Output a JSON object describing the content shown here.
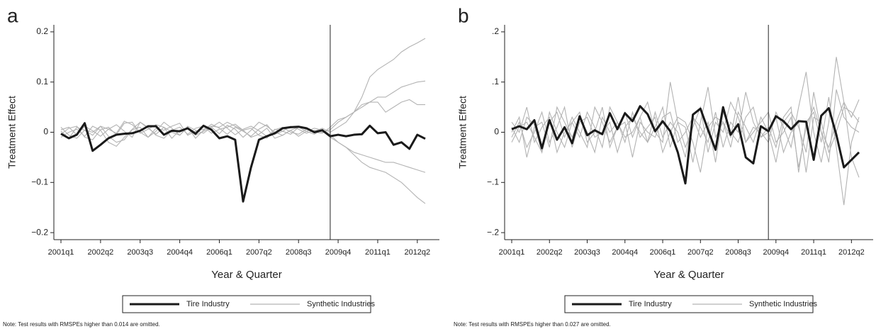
{
  "chart_data": [
    {
      "type": "line",
      "panel": "a",
      "y_label": "Treatment Effect",
      "x_label": "Year & Quarter",
      "note": "Note: Test results with RMSPEs higher than 0.014 are omitted.",
      "categories": [
        "2001q1",
        null,
        null,
        null,
        null,
        "2002q2",
        null,
        null,
        null,
        null,
        "2003q3",
        null,
        null,
        null,
        null,
        "2004q4",
        null,
        null,
        null,
        null,
        "2006q1",
        null,
        null,
        null,
        null,
        "2007q2",
        null,
        null,
        null,
        null,
        "2008q3",
        null,
        null,
        null,
        null,
        "2009q4",
        null,
        null,
        null,
        null,
        "2011q1",
        null,
        null,
        null,
        null,
        "2012q2",
        null
      ],
      "reference_line": 34,
      "ylim": [
        -0.214,
        0.214
      ],
      "yticks": [
        {
          "value": -0.2,
          "label": "−0.2"
        },
        {
          "value": -0.1,
          "label": "−0.1"
        },
        0,
        {
          "value": 0.1,
          "label": "0.1"
        },
        {
          "value": 0.2,
          "label": "0.2"
        }
      ],
      "legend": "bottom",
      "series": [
        {
          "name": "Tire Industry",
          "color": "#1a1a1a",
          "values": [
            -0.003,
            -0.012,
            -0.005,
            0.018,
            -0.037,
            -0.025,
            -0.012,
            -0.005,
            -0.003,
            -0.002,
            0.003,
            0.012,
            0.012,
            -0.005,
            0.003,
            0.002,
            0.008,
            -0.003,
            0.013,
            0.005,
            -0.012,
            -0.008,
            -0.015,
            -0.138,
            -0.07,
            -0.015,
            -0.008,
            -0.002,
            0.008,
            0.01,
            0.011,
            0.008,
            0.0,
            0.004,
            -0.008,
            -0.005,
            -0.008,
            -0.005,
            -0.004,
            0.013,
            -0.002,
            0.0,
            -0.025,
            -0.02,
            -0.033,
            -0.005,
            -0.013
          ]
        },
        {
          "name": "Synthetic Industries",
          "color": "#b3b3b3",
          "lines": [
            [
              0.005,
              0.01,
              -0.005,
              0.012,
              0.003,
              -0.008,
              0.006,
              0.015,
              0.002,
              -0.01,
              0.02,
              0.008,
              -0.004,
              0.01,
              0.0,
              -0.006,
              0.012,
              0.004,
              -0.002,
              0.01,
              0.02,
              0.008,
              -0.005,
              0.006,
              0.012,
              0.003,
              -0.008,
              0.005,
              0.01,
              0.0,
              -0.004,
              0.006,
              0.002,
              0.008,
              0.0,
              0.01,
              0.02,
              0.04,
              0.07,
              0.11,
              0.125,
              0.135,
              0.145,
              0.16,
              0.17,
              0.178,
              0.187
            ],
            [
              -0.004,
              0.008,
              0.012,
              -0.01,
              -0.015,
              0.005,
              0.01,
              -0.005,
              0.018,
              0.02,
              -0.002,
              0.006,
              0.015,
              0.01,
              -0.012,
              0.004,
              0.008,
              -0.006,
              0.002,
              0.01,
              -0.003,
              0.014,
              0.006,
              -0.01,
              0.004,
              0.02,
              0.012,
              0.0,
              -0.006,
              0.004,
              0.01,
              0.002,
              -0.004,
              0.006,
              -0.005,
              -0.02,
              -0.03,
              -0.045,
              -0.06,
              -0.07,
              -0.075,
              -0.08,
              -0.09,
              -0.1,
              -0.115,
              -0.13,
              -0.142
            ],
            [
              0.01,
              -0.006,
              -0.012,
              0.004,
              0.0,
              0.012,
              -0.008,
              -0.02,
              -0.015,
              0.005,
              0.01,
              -0.01,
              0.002,
              0.02,
              0.008,
              -0.006,
              0.01,
              -0.012,
              0.004,
              0.016,
              0.008,
              -0.004,
              0.01,
              0.002,
              -0.008,
              0.006,
              0.015,
              -0.004,
              0.002,
              0.012,
              0.006,
              -0.002,
              0.004,
              0.0,
              0.005,
              0.02,
              0.03,
              0.04,
              0.05,
              0.06,
              0.07,
              0.07,
              0.08,
              0.09,
              0.095,
              0.1,
              0.102
            ],
            [
              -0.01,
              0.0,
              0.006,
              -0.008,
              0.012,
              0.004,
              -0.02,
              -0.028,
              -0.01,
              0.006,
              0.02,
              0.01,
              -0.006,
              -0.012,
              0.004,
              0.01,
              -0.004,
              0.008,
              0.012,
              -0.002,
              0.006,
              0.01,
              0.016,
              0.004,
              -0.01,
              -0.004,
              0.008,
              -0.012,
              -0.006,
              0.004,
              -0.008,
              0.002,
              0.008,
              0.004,
              -0.01,
              -0.02,
              -0.03,
              -0.04,
              -0.045,
              -0.05,
              -0.055,
              -0.06,
              -0.06,
              -0.065,
              -0.07,
              -0.075,
              -0.08
            ],
            [
              0.002,
              -0.012,
              0.01,
              0.004,
              -0.006,
              0.012,
              0.006,
              -0.002,
              0.022,
              0.015,
              0.0,
              -0.01,
              0.008,
              0.004,
              0.012,
              0.018,
              -0.006,
              0.002,
              0.006,
              0.012,
              0.01,
              0.02,
              0.012,
              0.004,
              0.008,
              -0.006,
              -0.012,
              0.006,
              0.002,
              -0.004,
              0.01,
              0.006,
              0.0,
              -0.002,
              0.01,
              0.025,
              0.03,
              0.04,
              0.055,
              0.06,
              0.06,
              0.04,
              0.05,
              0.06,
              0.065,
              0.055,
              0.055
            ]
          ]
        }
      ]
    },
    {
      "type": "line",
      "panel": "b",
      "y_label": "Treatment Effect",
      "x_label": "Year & Quarter",
      "note": "Note: Test results with RMSPEs higher than 0.027 are omitted.",
      "categories": [
        "2001q1",
        null,
        null,
        null,
        null,
        "2002q2",
        null,
        null,
        null,
        null,
        "2003q3",
        null,
        null,
        null,
        null,
        "2004q4",
        null,
        null,
        null,
        null,
        "2006q1",
        null,
        null,
        null,
        null,
        "2007q2",
        null,
        null,
        null,
        null,
        "2008q3",
        null,
        null,
        null,
        null,
        "2009q4",
        null,
        null,
        null,
        null,
        "2011q1",
        null,
        null,
        null,
        null,
        "2012q2",
        null
      ],
      "reference_line": 34,
      "ylim": [
        -0.214,
        0.214
      ],
      "yticks": [
        {
          "value": -0.2,
          "label": "−.2"
        },
        {
          "value": -0.1,
          "label": "−.1"
        },
        0,
        {
          "value": 0.1,
          "label": ".1"
        },
        {
          "value": 0.2,
          "label": ".2"
        }
      ],
      "legend": "bottom",
      "series": [
        {
          "name": "Tire Industry",
          "color": "#1a1a1a",
          "values": [
            0.006,
            0.012,
            0.006,
            0.024,
            -0.032,
            0.024,
            -0.015,
            0.01,
            -0.022,
            0.032,
            -0.006,
            0.004,
            -0.004,
            0.038,
            0.006,
            0.038,
            0.022,
            0.052,
            0.036,
            0.002,
            0.022,
            0.002,
            -0.04,
            -0.102,
            0.035,
            0.047,
            0.005,
            -0.035,
            0.05,
            -0.005,
            0.016,
            -0.05,
            -0.062,
            0.012,
            0.002,
            0.032,
            0.022,
            0.006,
            0.022,
            0.021,
            -0.055,
            0.033,
            0.048,
            -0.005,
            -0.07,
            -0.055,
            -0.04
          ]
        },
        {
          "name": "Synthetic Industries",
          "color": "#b3b3b3",
          "lines": [
            [
              0.01,
              -0.02,
              0.03,
              0.015,
              -0.04,
              0.02,
              0.04,
              -0.01,
              0.03,
              0.0,
              -0.03,
              0.05,
              0.02,
              -0.02,
              0.01,
              0.04,
              -0.01,
              0.03,
              0.06,
              0.0,
              -0.02,
              0.1,
              0.02,
              -0.03,
              0.01,
              0.05,
              -0.04,
              0.02,
              0.0,
              0.06,
              0.03,
              -0.02,
              0.01,
              0.0,
              -0.02,
              0.04,
              0.01,
              -0.03,
              0.05,
              0.12,
              0.0,
              -0.06,
              0.02,
              0.15,
              0.06,
              0.03,
              0.065
            ],
            [
              -0.01,
              0.02,
              -0.03,
              0.0,
              0.04,
              -0.02,
              0.01,
              0.05,
              -0.03,
              0.02,
              0.03,
              -0.01,
              0.0,
              0.02,
              -0.04,
              0.01,
              0.03,
              0.0,
              -0.02,
              0.04,
              -0.01,
              0.02,
              0.0,
              -0.05,
              0.03,
              0.01,
              -0.02,
              0.04,
              -0.03,
              0.02,
              0.0,
              0.08,
              0.02,
              -0.01,
              0.01,
              -0.03,
              0.03,
              0.05,
              -0.08,
              0.02,
              0.04,
              -0.02,
              0.07,
              -0.03,
              -0.145,
              -0.02,
              0.03
            ],
            [
              0.02,
              0.0,
              0.05,
              -0.02,
              0.01,
              0.03,
              -0.04,
              0.0,
              0.02,
              -0.01,
              0.04,
              0.01,
              -0.03,
              0.05,
              0.02,
              -0.01,
              0.0,
              0.03,
              -0.02,
              0.01,
              0.05,
              -0.03,
              0.02,
              0.01,
              -0.06,
              0.02,
              0.09,
              -0.01,
              0.02,
              -0.03,
              0.04,
              0.01,
              -0.02,
              0.03,
              0.0,
              -0.06,
              0.02,
              0.04,
              0.01,
              -0.04,
              0.08,
              0.0,
              -0.03,
              0.02,
              0.06,
              -0.05,
              -0.09
            ],
            [
              0.0,
              0.03,
              -0.05,
              0.01,
              0.02,
              -0.03,
              0.05,
              0.02,
              -0.01,
              0.03,
              0.0,
              -0.04,
              0.03,
              0.0,
              0.02,
              -0.02,
              0.04,
              -0.01,
              0.01,
              0.03,
              -0.04,
              0.0,
              0.03,
              0.02,
              -0.02,
              -0.08,
              0.01,
              0.03,
              0.02,
              -0.01,
              0.07,
              -0.02,
              0.0,
              0.02,
              0.04,
              -0.02,
              0.0,
              0.03,
              -0.07,
              0.01,
              0.05,
              0.0,
              -0.06,
              0.085,
              0.03,
              0.01,
              0.0
            ],
            [
              -0.02,
              0.01,
              0.02,
              -0.01,
              -0.04,
              0.04,
              0.0,
              -0.03,
              0.02,
              0.04,
              -0.02,
              0.0,
              0.05,
              -0.03,
              0.01,
              0.02,
              -0.05,
              0.02,
              0.0,
              -0.01,
              0.03,
              0.04,
              -0.02,
              0.0,
              0.03,
              -0.01,
              0.02,
              -0.06,
              0.04,
              0.0,
              -0.02,
              0.03,
              0.05,
              -0.01,
              0.0,
              0.03,
              -0.04,
              0.0,
              0.02,
              -0.08,
              0.03,
              0.02,
              -0.04,
              0.0,
              0.05,
              0.04,
              0.02
            ]
          ]
        }
      ]
    }
  ]
}
